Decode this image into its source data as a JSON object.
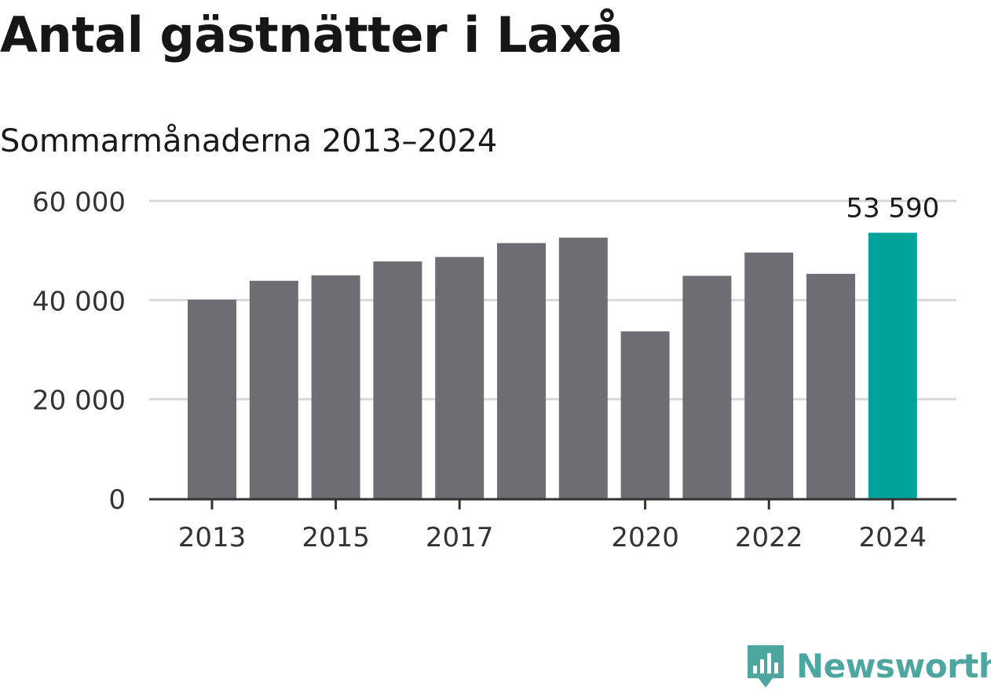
{
  "title": "Antal gästnätter i Laxå",
  "subtitle": "Sommarmånaderna 2013–2024",
  "brand": {
    "name": "Newsworthy",
    "color": "#4ea6a0"
  },
  "colors": {
    "bar": "#6e6d73",
    "highlight": "#00a399",
    "grid": "#d9d9d9",
    "axis": "#333333"
  },
  "chart_data": {
    "type": "bar",
    "categories": [
      "2013",
      "2014",
      "2015",
      "2016",
      "2017",
      "2018",
      "2019",
      "2020",
      "2021",
      "2022",
      "2023",
      "2024"
    ],
    "values": [
      40100,
      43900,
      45000,
      47800,
      48700,
      51500,
      52600,
      33700,
      44900,
      49600,
      45300,
      53590
    ],
    "highlight_index": 11,
    "data_labels": [
      {
        "index": 11,
        "text": "53 590"
      }
    ],
    "ylim": [
      0,
      60000
    ],
    "yticks": [
      0,
      20000,
      40000,
      60000
    ],
    "ytick_labels": [
      "0",
      "20 000",
      "40 000",
      "60 000"
    ],
    "xtick_labels": [
      "2013",
      "2015",
      "2017",
      "2020",
      "2022",
      "2024"
    ],
    "grid": true,
    "legend": "none",
    "xlabel": "",
    "ylabel": ""
  }
}
